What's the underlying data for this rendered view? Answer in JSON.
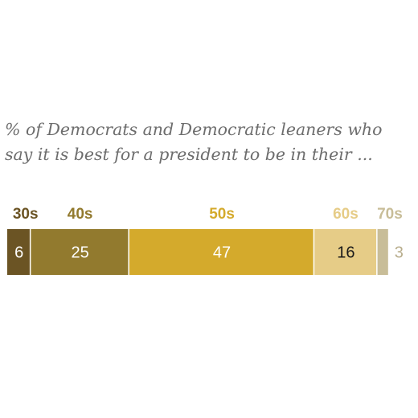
{
  "chart_data": {
    "type": "bar",
    "orientation": "horizontal",
    "stacked": true,
    "title": "% of Democrats and Democratic leaners who say it is best for a president to be in their ...",
    "categories": [
      "30s",
      "40s",
      "50s",
      "60s",
      "70s"
    ],
    "values": [
      6,
      25,
      47,
      16,
      3
    ],
    "xlim": [
      0,
      100
    ],
    "grid": false,
    "colors": {
      "30s": "#6b5424",
      "40s": "#927a2e",
      "50s": "#d4aa2c",
      "60s": "#e6cc87",
      "70s": "#c8bd98"
    },
    "label_colors": {
      "30s": "#6b5424",
      "40s": "#927a2e",
      "50s": "#d4aa2c",
      "60s": "#e6cc87",
      "70s": "#c8bd98"
    },
    "value_text_colors": {
      "30s": "#ffffff",
      "40s": "#ffffff",
      "50s": "#ffffff",
      "60s": "#1a1a1a",
      "70s": "#b8ad8c"
    }
  }
}
